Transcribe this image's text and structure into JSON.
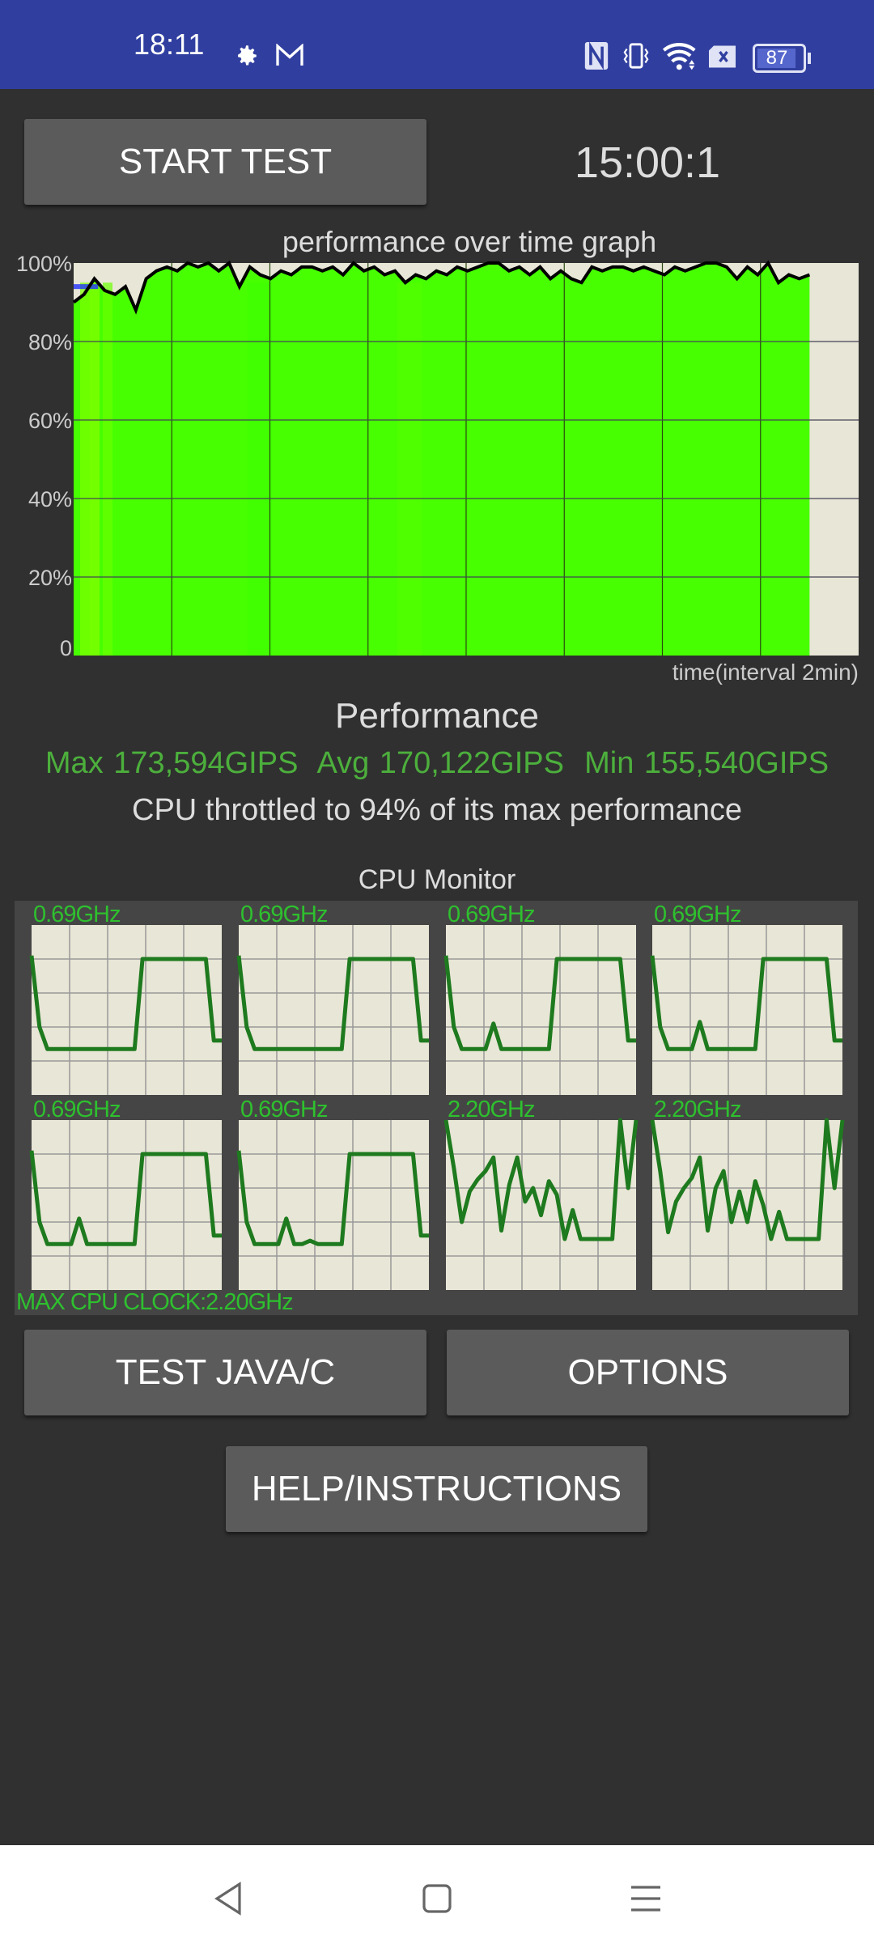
{
  "status_bar": {
    "time": "18:11",
    "battery": "87",
    "icons": [
      "gear-icon",
      "gmail-icon",
      "nfc-icon",
      "vibrate-icon",
      "wifi-icon",
      "sim-x-icon",
      "battery-icon"
    ],
    "color": "#303f9f"
  },
  "controls": {
    "start_label": "START TEST",
    "timer": "15:00:1",
    "test_label": "TEST JAVA/C",
    "options_label": "OPTIONS",
    "help_label": "HELP/INSTRUCTIONS"
  },
  "chart_data": [
    {
      "type": "area",
      "title": "performance over time graph",
      "xlabel": "time(interval 2min)",
      "ylabel": "",
      "ylim": [
        0,
        100
      ],
      "yticks": [
        "0",
        "20%",
        "40%",
        "60%",
        "80%",
        "100%"
      ],
      "x_unit": "minutes",
      "xlim": [
        0,
        16
      ],
      "grid": true,
      "fill_color": "#47ff00",
      "line_color": "#000000",
      "reference_line": {
        "value": 94,
        "x_range": [
          0,
          0.5
        ],
        "color": "#2233ff"
      },
      "values": [
        90,
        92,
        96,
        93,
        92,
        94,
        88,
        96,
        98,
        99,
        98,
        100,
        99,
        100,
        98,
        100,
        94,
        99,
        97,
        96,
        98,
        97,
        99,
        99,
        98,
        99,
        97,
        100,
        98,
        99,
        97,
        98,
        95,
        97,
        96,
        98,
        97,
        99,
        98,
        99,
        100,
        100,
        98,
        99,
        97,
        99,
        96,
        98,
        96,
        95,
        99,
        98,
        99,
        99,
        98,
        99,
        98,
        97,
        99,
        98,
        99,
        100,
        100,
        99,
        96,
        99,
        97,
        100,
        95,
        97,
        96,
        97
      ],
      "series_end_minute": 15
    }
  ],
  "performance": {
    "title": "Performance",
    "max": "Max 173,594GIPS",
    "avg": "Avg 170,122GIPS",
    "min": "Min 155,540GIPS",
    "throttle": "CPU throttled to 94% of its max performance"
  },
  "cpu_monitor": {
    "title": "CPU Monitor",
    "max_clock": "MAX CPU CLOCK:2.20GHz",
    "line_color": "#1e7a1e",
    "cores": [
      {
        "freq": "0.69GHz",
        "levels": [
          82,
          40,
          27,
          27,
          27,
          27,
          27,
          27,
          27,
          27,
          27,
          27,
          27,
          27,
          80,
          80,
          80,
          80,
          80,
          80,
          80,
          80,
          80,
          32,
          32
        ]
      },
      {
        "freq": "0.69GHz",
        "levels": [
          82,
          40,
          27,
          27,
          27,
          27,
          27,
          27,
          27,
          27,
          27,
          27,
          27,
          27,
          80,
          80,
          80,
          80,
          80,
          80,
          80,
          80,
          80,
          32,
          32
        ]
      },
      {
        "freq": "0.69GHz",
        "levels": [
          82,
          40,
          27,
          27,
          27,
          27,
          42,
          27,
          27,
          27,
          27,
          27,
          27,
          27,
          80,
          80,
          80,
          80,
          80,
          80,
          80,
          80,
          80,
          32,
          32
        ]
      },
      {
        "freq": "0.69GHz",
        "levels": [
          82,
          40,
          27,
          27,
          27,
          27,
          43,
          27,
          27,
          27,
          27,
          27,
          27,
          27,
          80,
          80,
          80,
          80,
          80,
          80,
          80,
          80,
          80,
          32,
          32
        ]
      },
      {
        "freq": "0.69GHz",
        "levels": [
          82,
          40,
          27,
          27,
          27,
          27,
          42,
          27,
          27,
          27,
          27,
          27,
          27,
          27,
          80,
          80,
          80,
          80,
          80,
          80,
          80,
          80,
          80,
          32,
          32
        ]
      },
      {
        "freq": "0.69GHz",
        "levels": [
          82,
          40,
          27,
          27,
          27,
          27,
          42,
          27,
          27,
          29,
          27,
          27,
          27,
          27,
          80,
          80,
          80,
          80,
          80,
          80,
          80,
          80,
          80,
          32,
          32
        ]
      },
      {
        "freq": "2.20GHz",
        "levels": [
          100,
          72,
          40,
          58,
          65,
          70,
          78,
          35,
          62,
          78,
          52,
          60,
          44,
          64,
          56,
          30,
          47,
          30,
          30,
          30,
          30,
          30,
          100,
          60,
          100
        ]
      },
      {
        "freq": "2.20GHz",
        "levels": [
          100,
          70,
          34,
          52,
          60,
          66,
          78,
          35,
          60,
          70,
          40,
          58,
          40,
          64,
          50,
          30,
          46,
          30,
          30,
          30,
          30,
          30,
          100,
          60,
          100
        ]
      }
    ]
  }
}
